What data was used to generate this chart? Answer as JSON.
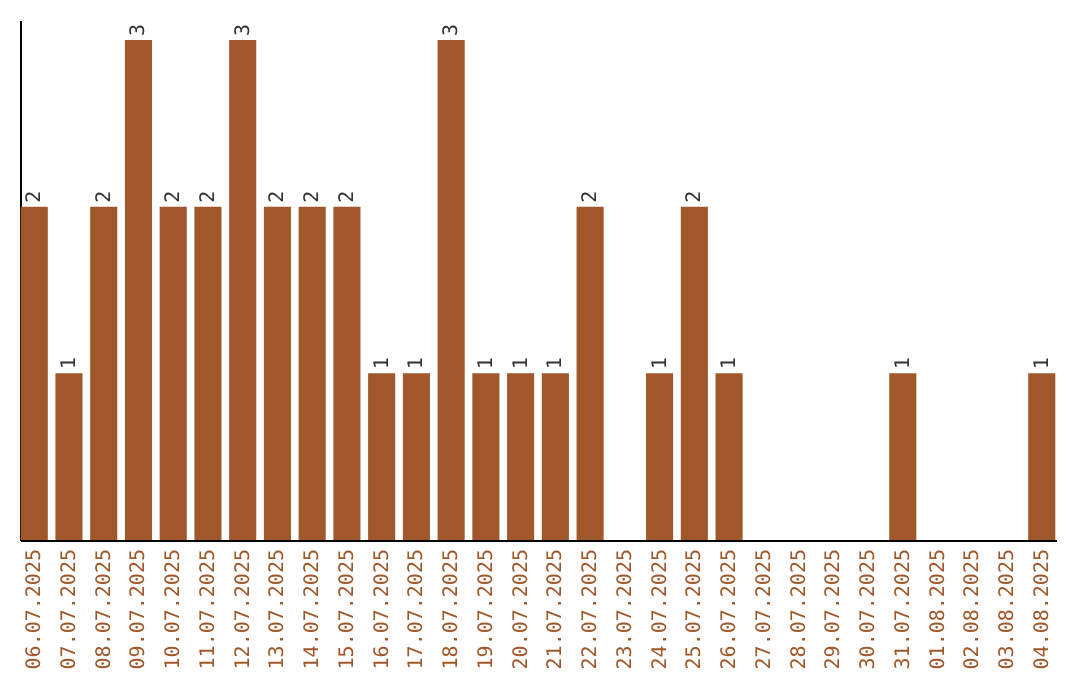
{
  "chart_data": {
    "type": "bar",
    "categories": [
      "06.07.2025",
      "07.07.2025",
      "08.07.2025",
      "09.07.2025",
      "10.07.2025",
      "11.07.2025",
      "12.07.2025",
      "13.07.2025",
      "14.07.2025",
      "15.07.2025",
      "16.07.2025",
      "17.07.2025",
      "18.07.2025",
      "19.07.2025",
      "20.07.2025",
      "21.07.2025",
      "22.07.2025",
      "23.07.2025",
      "24.07.2025",
      "25.07.2025",
      "26.07.2025",
      "27.07.2025",
      "28.07.2025",
      "29.07.2025",
      "30.07.2025",
      "31.07.2025",
      "01.08.2025",
      "02.08.2025",
      "03.08.2025",
      "04.08.2025"
    ],
    "values": [
      2,
      1,
      2,
      3,
      2,
      2,
      3,
      2,
      2,
      2,
      1,
      1,
      3,
      1,
      1,
      1,
      2,
      0,
      1,
      2,
      1,
      0,
      0,
      0,
      0,
      1,
      0,
      0,
      0,
      1
    ],
    "value_labels": [
      "2",
      "1",
      "2",
      "3",
      "2",
      "2",
      "3",
      "2",
      "2",
      "2",
      "1",
      "1",
      "3",
      "1",
      "1",
      "1",
      "2",
      null,
      "1",
      "2",
      "1",
      null,
      null,
      null,
      null,
      "1",
      null,
      null,
      null,
      "1"
    ],
    "color": "#a0582a",
    "ylim": [
      0,
      3.12
    ],
    "tick_labels": "x",
    "grid": false
  }
}
